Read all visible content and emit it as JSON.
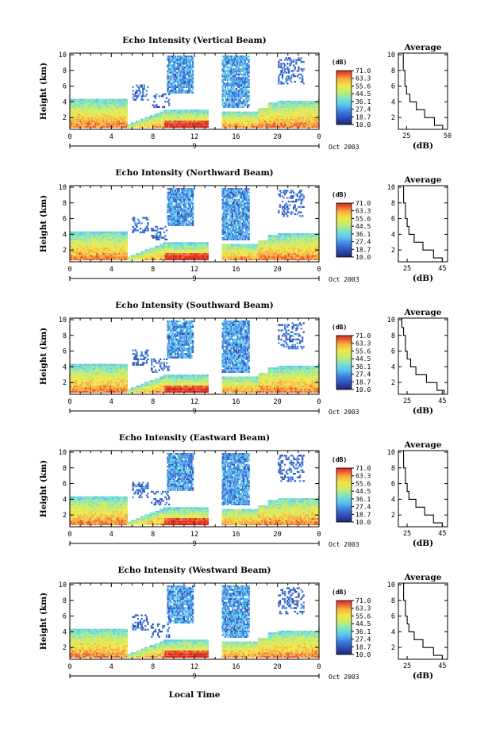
{
  "common": {
    "y_label": "Height (km)",
    "x_label": "Local Time",
    "date_label": "Oct 2003",
    "colorbar_title": "(dB)",
    "colorbar_ticks": [
      "71.0",
      "63.3",
      "55.6",
      "44.5",
      "36.1",
      "27.4",
      "18.7",
      "10.0"
    ],
    "x_ticks": [
      "0",
      "4",
      "8",
      "12",
      "16",
      "20",
      "0"
    ],
    "day_marker": "9",
    "y_ticks": [
      "10",
      "8",
      "6",
      "4",
      "2"
    ],
    "avg_title": "Average",
    "avg_xlabel": "(dB)"
  },
  "colors": {
    "scale": [
      "#24236e",
      "#2c4fb8",
      "#3f7fe0",
      "#59c3f0",
      "#7fe3c8",
      "#c6ec6a",
      "#f2e64a",
      "#f6b041",
      "#ec5b32",
      "#d42a1e"
    ]
  },
  "chart_data": [
    {
      "type": "heatmap",
      "title": "Echo Intensity (Vertical Beam)",
      "avg_ticks": [
        "25",
        "50"
      ],
      "ylim": [
        0.5,
        10.2
      ],
      "xlim": [
        0,
        24
      ],
      "avg_xlim": [
        20,
        50
      ],
      "average_profile": [
        [
          1.0,
          47
        ],
        [
          2.0,
          42
        ],
        [
          3.0,
          36
        ],
        [
          4.0,
          31
        ],
        [
          5.0,
          27
        ],
        [
          6.0,
          25
        ],
        [
          7.0,
          24
        ],
        [
          8.0,
          24
        ],
        [
          9.0,
          23
        ],
        [
          10.0,
          23
        ]
      ]
    },
    {
      "type": "heatmap",
      "title": "Echo Intensity (Northward Beam)",
      "avg_ticks": [
        "25",
        "45"
      ],
      "ylim": [
        0.5,
        10.2
      ],
      "xlim": [
        0,
        24
      ],
      "avg_xlim": [
        20,
        48
      ],
      "average_profile": [
        [
          1.0,
          45
        ],
        [
          2.0,
          40
        ],
        [
          3.0,
          34
        ],
        [
          4.0,
          29
        ],
        [
          5.0,
          26
        ],
        [
          6.0,
          25
        ],
        [
          7.0,
          24
        ],
        [
          8.0,
          24
        ],
        [
          9.0,
          23
        ],
        [
          10.0,
          23
        ]
      ]
    },
    {
      "type": "heatmap",
      "title": "Echo Intensity (Southward Beam)",
      "avg_ticks": [
        "25",
        "45"
      ],
      "ylim": [
        0.5,
        10.2
      ],
      "xlim": [
        0,
        24
      ],
      "avg_xlim": [
        20,
        48
      ],
      "average_profile": [
        [
          1.0,
          46
        ],
        [
          2.0,
          42
        ],
        [
          3.0,
          36
        ],
        [
          4.0,
          30
        ],
        [
          5.0,
          27
        ],
        [
          6.0,
          25
        ],
        [
          7.0,
          24
        ],
        [
          8.0,
          24
        ],
        [
          9.0,
          23
        ],
        [
          10.0,
          22
        ]
      ]
    },
    {
      "type": "heatmap",
      "title": "Echo Intensity (Eastward Beam)",
      "avg_ticks": [
        "25",
        "45"
      ],
      "ylim": [
        0.5,
        10.2
      ],
      "xlim": [
        0,
        24
      ],
      "avg_xlim": [
        20,
        48
      ],
      "average_profile": [
        [
          1.0,
          45
        ],
        [
          2.0,
          40
        ],
        [
          3.0,
          35
        ],
        [
          4.0,
          30
        ],
        [
          5.0,
          26
        ],
        [
          6.0,
          25
        ],
        [
          7.0,
          24
        ],
        [
          8.0,
          24
        ],
        [
          9.0,
          23
        ],
        [
          10.0,
          23
        ]
      ]
    },
    {
      "type": "heatmap",
      "title": "Echo Intensity (Westward Beam)",
      "avg_ticks": [
        "25",
        "45"
      ],
      "ylim": [
        0.5,
        10.2
      ],
      "xlim": [
        0,
        24
      ],
      "avg_xlim": [
        20,
        48
      ],
      "average_profile": [
        [
          1.0,
          45
        ],
        [
          2.0,
          40
        ],
        [
          3.0,
          34
        ],
        [
          4.0,
          29
        ],
        [
          5.0,
          26
        ],
        [
          6.0,
          25
        ],
        [
          7.0,
          24
        ],
        [
          8.0,
          24
        ],
        [
          9.0,
          23
        ],
        [
          10.0,
          23
        ]
      ]
    }
  ]
}
